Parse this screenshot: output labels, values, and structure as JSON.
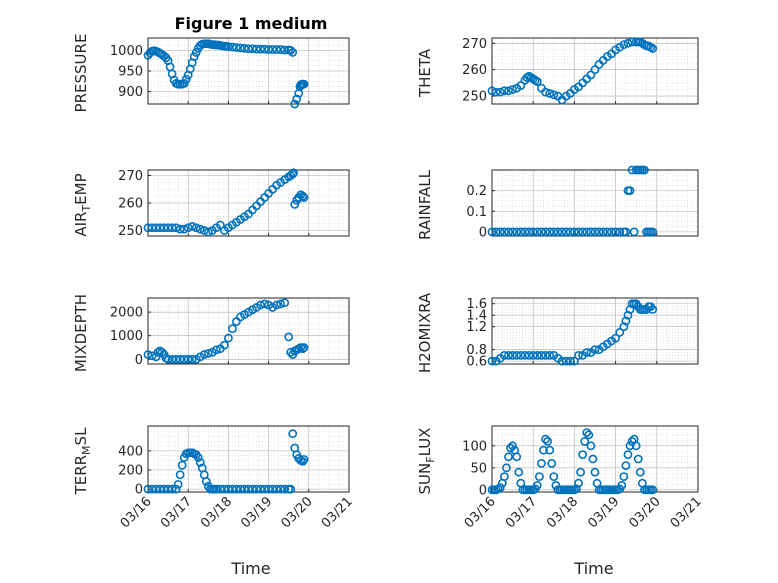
{
  "figure": {
    "title": "Figure 1 medium",
    "marker_color": "#0072BD",
    "x_axis_label": "Time"
  },
  "chart_data": [
    {
      "type": "scatter",
      "ylabel": "PRESSURE",
      "xlabel": "",
      "xlim": [
        0,
        5
      ],
      "ylim": [
        870,
        1030
      ],
      "yticks": [
        900,
        950,
        1000
      ],
      "yticklabels": [
        "900",
        "950",
        "1000"
      ],
      "xticks": [
        0,
        1,
        2,
        3,
        4,
        5
      ],
      "xticklabels": [
        "",
        "",
        "",
        "",
        "",
        ""
      ],
      "x": [
        0.0,
        0.05,
        0.1,
        0.15,
        0.2,
        0.25,
        0.3,
        0.35,
        0.4,
        0.45,
        0.5,
        0.55,
        0.6,
        0.65,
        0.7,
        0.75,
        0.8,
        0.85,
        0.9,
        0.95,
        1.0,
        1.05,
        1.1,
        1.15,
        1.2,
        1.25,
        1.3,
        1.35,
        1.4,
        1.45,
        1.5,
        1.55,
        1.6,
        1.65,
        1.7,
        1.75,
        1.8,
        1.85,
        1.9,
        1.95,
        2.0,
        2.1,
        2.2,
        2.3,
        2.4,
        2.5,
        2.6,
        2.7,
        2.8,
        2.9,
        3.0,
        3.1,
        3.2,
        3.3,
        3.4,
        3.5,
        3.55,
        3.6,
        3.65,
        3.7,
        3.75,
        3.78,
        3.8,
        3.83,
        3.85,
        3.88
      ],
      "y": [
        988,
        994,
        998,
        999,
        998,
        996,
        993,
        990,
        986,
        982,
        975,
        960,
        943,
        928,
        920,
        918,
        918,
        918,
        920,
        930,
        940,
        955,
        970,
        985,
        995,
        1005,
        1012,
        1015,
        1016,
        1016,
        1016,
        1015,
        1014,
        1014,
        1013,
        1013,
        1012,
        1011,
        1010,
        1010,
        1009,
        1008,
        1007,
        1006,
        1005,
        1004,
        1004,
        1003,
        1003,
        1003,
        1002,
        1002,
        1002,
        1002,
        1001,
        1001,
        1000,
        995,
        870,
        882,
        896,
        912,
        916,
        918,
        918,
        918
      ]
    },
    {
      "type": "scatter",
      "ylabel": "THETA",
      "xlabel": "",
      "xlim": [
        0,
        5
      ],
      "ylim": [
        247,
        272
      ],
      "yticks": [
        250,
        260,
        270
      ],
      "yticklabels": [
        "250",
        "260",
        "270"
      ],
      "xticks": [
        0,
        1,
        2,
        3,
        4,
        5
      ],
      "xticklabels": [
        "",
        "",
        "",
        "",
        "",
        ""
      ],
      "x": [
        0.0,
        0.1,
        0.2,
        0.3,
        0.4,
        0.5,
        0.6,
        0.7,
        0.8,
        0.85,
        0.9,
        0.95,
        1.0,
        1.05,
        1.1,
        1.2,
        1.3,
        1.4,
        1.5,
        1.6,
        1.7,
        1.8,
        1.9,
        2.0,
        2.1,
        2.2,
        2.3,
        2.4,
        2.5,
        2.6,
        2.7,
        2.8,
        2.9,
        3.0,
        3.1,
        3.2,
        3.3,
        3.4,
        3.5,
        3.55,
        3.6,
        3.65,
        3.7,
        3.75,
        3.8,
        3.85,
        3.9
      ],
      "y": [
        252,
        251.5,
        251.5,
        252,
        252,
        252.5,
        253,
        254,
        256,
        257,
        257.5,
        257,
        256.5,
        256,
        255.5,
        253,
        251.5,
        251,
        250.5,
        250,
        248.5,
        250,
        251,
        252.5,
        253.5,
        255,
        256.5,
        258,
        260,
        262,
        263.5,
        265,
        266,
        267.5,
        268.5,
        269.5,
        270,
        270.5,
        270.5,
        270.5,
        270.5,
        270,
        269.5,
        269,
        269,
        268.5,
        268
      ]
    },
    {
      "type": "scatter",
      "ylabel": "AIR_TEMP",
      "xlabel": "",
      "xlim": [
        0,
        5
      ],
      "ylim": [
        248,
        272
      ],
      "yticks": [
        250,
        260,
        270
      ],
      "yticklabels": [
        "250",
        "260",
        "270"
      ],
      "xticks": [
        0,
        1,
        2,
        3,
        4,
        5
      ],
      "xticklabels": [
        "",
        "",
        "",
        "",
        "",
        ""
      ],
      "x": [
        0.0,
        0.1,
        0.2,
        0.3,
        0.4,
        0.5,
        0.6,
        0.7,
        0.8,
        0.9,
        1.0,
        1.1,
        1.2,
        1.3,
        1.4,
        1.5,
        1.6,
        1.7,
        1.8,
        1.9,
        2.0,
        2.1,
        2.2,
        2.3,
        2.4,
        2.5,
        2.6,
        2.7,
        2.8,
        2.9,
        3.0,
        3.1,
        3.2,
        3.3,
        3.4,
        3.5,
        3.55,
        3.6,
        3.62,
        3.65,
        3.7,
        3.75,
        3.8,
        3.85,
        3.88
      ],
      "y": [
        251,
        251,
        251,
        251,
        251,
        251,
        251,
        251,
        250.5,
        250.5,
        251,
        251.5,
        251,
        250.5,
        250,
        249.5,
        250,
        251,
        252,
        250,
        251,
        252,
        253,
        254,
        255,
        256,
        257.5,
        259,
        260.5,
        262,
        263.5,
        265,
        266.5,
        267.5,
        268.5,
        269.5,
        270,
        270.5,
        271,
        259.5,
        261,
        262,
        263,
        262.5,
        262
      ]
    },
    {
      "type": "scatter",
      "ylabel": "RAINFALL",
      "xlabel": "",
      "xlim": [
        0,
        5
      ],
      "ylim": [
        -0.02,
        0.3
      ],
      "yticks": [
        0,
        0.1,
        0.2
      ],
      "yticklabels": [
        "0",
        "0.1",
        "0.2"
      ],
      "xticks": [
        0,
        1,
        2,
        3,
        4,
        5
      ],
      "xticklabels": [
        "",
        "",
        "",
        "",
        "",
        ""
      ],
      "x": [
        0.0,
        0.1,
        0.2,
        0.3,
        0.4,
        0.5,
        0.6,
        0.7,
        0.8,
        0.9,
        1.0,
        1.1,
        1.2,
        1.3,
        1.4,
        1.5,
        1.6,
        1.7,
        1.8,
        1.9,
        2.0,
        2.1,
        2.2,
        2.3,
        2.4,
        2.5,
        2.6,
        2.7,
        2.8,
        2.9,
        3.0,
        3.1,
        3.2,
        3.25,
        3.3,
        3.35,
        3.4,
        3.45,
        3.5,
        3.55,
        3.6,
        3.65,
        3.7,
        3.75,
        3.8,
        3.85,
        3.9
      ],
      "y": [
        0,
        0,
        0,
        0,
        0,
        0,
        0,
        0,
        0,
        0,
        0,
        0,
        0,
        0,
        0,
        0,
        0,
        0,
        0,
        0,
        0,
        0,
        0,
        0,
        0,
        0,
        0,
        0,
        0,
        0,
        0,
        0,
        0,
        0,
        0.2,
        0.2,
        0.3,
        0,
        0.3,
        0.3,
        0.3,
        0.3,
        0.3,
        0,
        0,
        0,
        0
      ]
    },
    {
      "type": "scatter",
      "ylabel": "MIXDEPTH",
      "xlabel": "",
      "xlim": [
        0,
        5
      ],
      "ylim": [
        -200,
        2600
      ],
      "yticks": [
        0,
        1000,
        2000
      ],
      "yticklabels": [
        "0",
        "1000",
        "2000"
      ],
      "xticks": [
        0,
        1,
        2,
        3,
        4,
        5
      ],
      "xticklabels": [
        "",
        "",
        "",
        "",
        "",
        ""
      ],
      "x": [
        0.0,
        0.1,
        0.2,
        0.25,
        0.3,
        0.35,
        0.4,
        0.45,
        0.5,
        0.6,
        0.7,
        0.8,
        0.9,
        1.0,
        1.1,
        1.2,
        1.3,
        1.4,
        1.5,
        1.6,
        1.7,
        1.8,
        1.9,
        2.0,
        2.1,
        2.2,
        2.3,
        2.4,
        2.5,
        2.6,
        2.7,
        2.8,
        2.9,
        3.0,
        3.1,
        3.2,
        3.3,
        3.4,
        3.5,
        3.55,
        3.6,
        3.65,
        3.7,
        3.75,
        3.8,
        3.85,
        3.88
      ],
      "y": [
        200,
        150,
        100,
        300,
        350,
        300,
        200,
        50,
        0,
        0,
        0,
        0,
        0,
        0,
        0,
        0,
        100,
        200,
        250,
        300,
        400,
        450,
        600,
        900,
        1300,
        1600,
        1800,
        1900,
        2000,
        2100,
        2200,
        2300,
        2350,
        2300,
        2200,
        2300,
        2350,
        2400,
        950,
        300,
        200,
        350,
        400,
        450,
        500,
        450,
        500
      ]
    },
    {
      "type": "scatter",
      "ylabel": "H2OMIXRA",
      "xlabel": "",
      "xlim": [
        0,
        5
      ],
      "ylim": [
        0.55,
        1.7
      ],
      "yticks": [
        0.6,
        0.8,
        1.2,
        1.4,
        1.6
      ],
      "yticklabels": [
        "0.6",
        "0.8",
        "1.2",
        "1.4",
        "1.6"
      ],
      "xticks": [
        0,
        1,
        2,
        3,
        4,
        5
      ],
      "xticklabels": [
        "",
        "",
        "",
        "",
        "",
        ""
      ],
      "x": [
        0.0,
        0.1,
        0.2,
        0.3,
        0.4,
        0.5,
        0.6,
        0.7,
        0.8,
        0.9,
        1.0,
        1.1,
        1.2,
        1.3,
        1.4,
        1.5,
        1.6,
        1.7,
        1.8,
        1.9,
        2.0,
        2.1,
        2.2,
        2.3,
        2.4,
        2.5,
        2.6,
        2.7,
        2.8,
        2.9,
        3.0,
        3.1,
        3.2,
        3.25,
        3.3,
        3.35,
        3.4,
        3.45,
        3.5,
        3.55,
        3.6,
        3.65,
        3.7,
        3.75,
        3.8,
        3.85,
        3.9
      ],
      "y": [
        0.6,
        0.6,
        0.65,
        0.7,
        0.7,
        0.7,
        0.7,
        0.7,
        0.7,
        0.7,
        0.7,
        0.7,
        0.7,
        0.7,
        0.7,
        0.7,
        0.65,
        0.6,
        0.6,
        0.6,
        0.6,
        0.7,
        0.7,
        0.75,
        0.75,
        0.8,
        0.8,
        0.85,
        0.9,
        0.95,
        1.0,
        1.1,
        1.2,
        1.3,
        1.4,
        1.5,
        1.6,
        1.6,
        1.6,
        1.55,
        1.5,
        1.5,
        1.5,
        1.5,
        1.55,
        1.55,
        1.5
      ]
    },
    {
      "type": "scatter",
      "ylabel": "TERR_MSL",
      "xlabel": "",
      "xlim": [
        0,
        5
      ],
      "ylim": [
        -30,
        660
      ],
      "yticks": [
        0,
        200,
        400
      ],
      "yticklabels": [
        "0",
        "200",
        "400"
      ],
      "xticks": [
        0,
        1,
        2,
        3,
        4,
        5
      ],
      "xticklabels": [
        "03/16",
        "03/17",
        "03/18",
        "03/19",
        "03/20",
        "03/21"
      ],
      "x": [
        0.0,
        0.1,
        0.2,
        0.3,
        0.4,
        0.5,
        0.6,
        0.7,
        0.75,
        0.8,
        0.85,
        0.9,
        0.95,
        1.0,
        1.05,
        1.1,
        1.15,
        1.2,
        1.25,
        1.3,
        1.35,
        1.4,
        1.45,
        1.5,
        1.55,
        1.6,
        1.65,
        1.7,
        1.8,
        1.9,
        2.0,
        2.1,
        2.2,
        2.3,
        2.4,
        2.5,
        2.6,
        2.7,
        2.8,
        2.9,
        3.0,
        3.1,
        3.2,
        3.3,
        3.4,
        3.5,
        3.55,
        3.6,
        3.65,
        3.7,
        3.75,
        3.8,
        3.85,
        3.88
      ],
      "y": [
        0,
        0,
        0,
        0,
        0,
        0,
        0,
        0,
        50,
        150,
        250,
        330,
        370,
        380,
        380,
        380,
        370,
        360,
        330,
        280,
        220,
        150,
        80,
        30,
        0,
        0,
        0,
        0,
        0,
        0,
        0,
        0,
        0,
        0,
        0,
        0,
        0,
        0,
        0,
        0,
        0,
        0,
        0,
        0,
        0,
        0,
        0,
        580,
        430,
        360,
        320,
        300,
        290,
        310
      ]
    },
    {
      "type": "scatter",
      "ylabel": "SUN_FLUX",
      "xlabel": "",
      "xlim": [
        0,
        5
      ],
      "ylim": [
        -5,
        145
      ],
      "yticks": [
        0,
        50,
        100
      ],
      "yticklabels": [
        "0",
        "50",
        "100"
      ],
      "xticks": [
        0,
        1,
        2,
        3,
        4,
        5
      ],
      "xticklabels": [
        "03/16",
        "03/17",
        "03/18",
        "03/19",
        "03/20",
        "03/21"
      ],
      "x": [
        0.0,
        0.05,
        0.1,
        0.15,
        0.2,
        0.25,
        0.3,
        0.35,
        0.4,
        0.45,
        0.5,
        0.55,
        0.6,
        0.65,
        0.7,
        0.75,
        0.8,
        0.85,
        0.9,
        0.95,
        1.0,
        1.05,
        1.1,
        1.15,
        1.2,
        1.25,
        1.3,
        1.35,
        1.4,
        1.45,
        1.5,
        1.55,
        1.6,
        1.65,
        1.7,
        1.75,
        1.8,
        1.85,
        1.9,
        1.95,
        2.0,
        2.05,
        2.1,
        2.15,
        2.2,
        2.25,
        2.3,
        2.35,
        2.4,
        2.45,
        2.5,
        2.55,
        2.6,
        2.65,
        2.7,
        2.75,
        2.8,
        2.85,
        2.9,
        2.95,
        3.0,
        3.05,
        3.1,
        3.15,
        3.2,
        3.25,
        3.3,
        3.35,
        3.4,
        3.45,
        3.5,
        3.55,
        3.6,
        3.65,
        3.7,
        3.75,
        3.8,
        3.85,
        3.9
      ],
      "y": [
        0,
        0,
        0,
        2,
        5,
        15,
        30,
        50,
        75,
        95,
        100,
        90,
        75,
        40,
        15,
        0,
        0,
        0,
        0,
        0,
        0,
        2,
        10,
        30,
        60,
        90,
        115,
        110,
        90,
        60,
        30,
        10,
        0,
        0,
        0,
        0,
        0,
        0,
        0,
        0,
        0,
        2,
        15,
        40,
        80,
        110,
        130,
        125,
        100,
        70,
        40,
        15,
        0,
        0,
        0,
        0,
        0,
        0,
        0,
        0,
        0,
        0,
        2,
        10,
        30,
        55,
        80,
        100,
        110,
        115,
        100,
        70,
        40,
        15,
        0,
        0,
        0,
        0,
        0
      ]
    }
  ]
}
